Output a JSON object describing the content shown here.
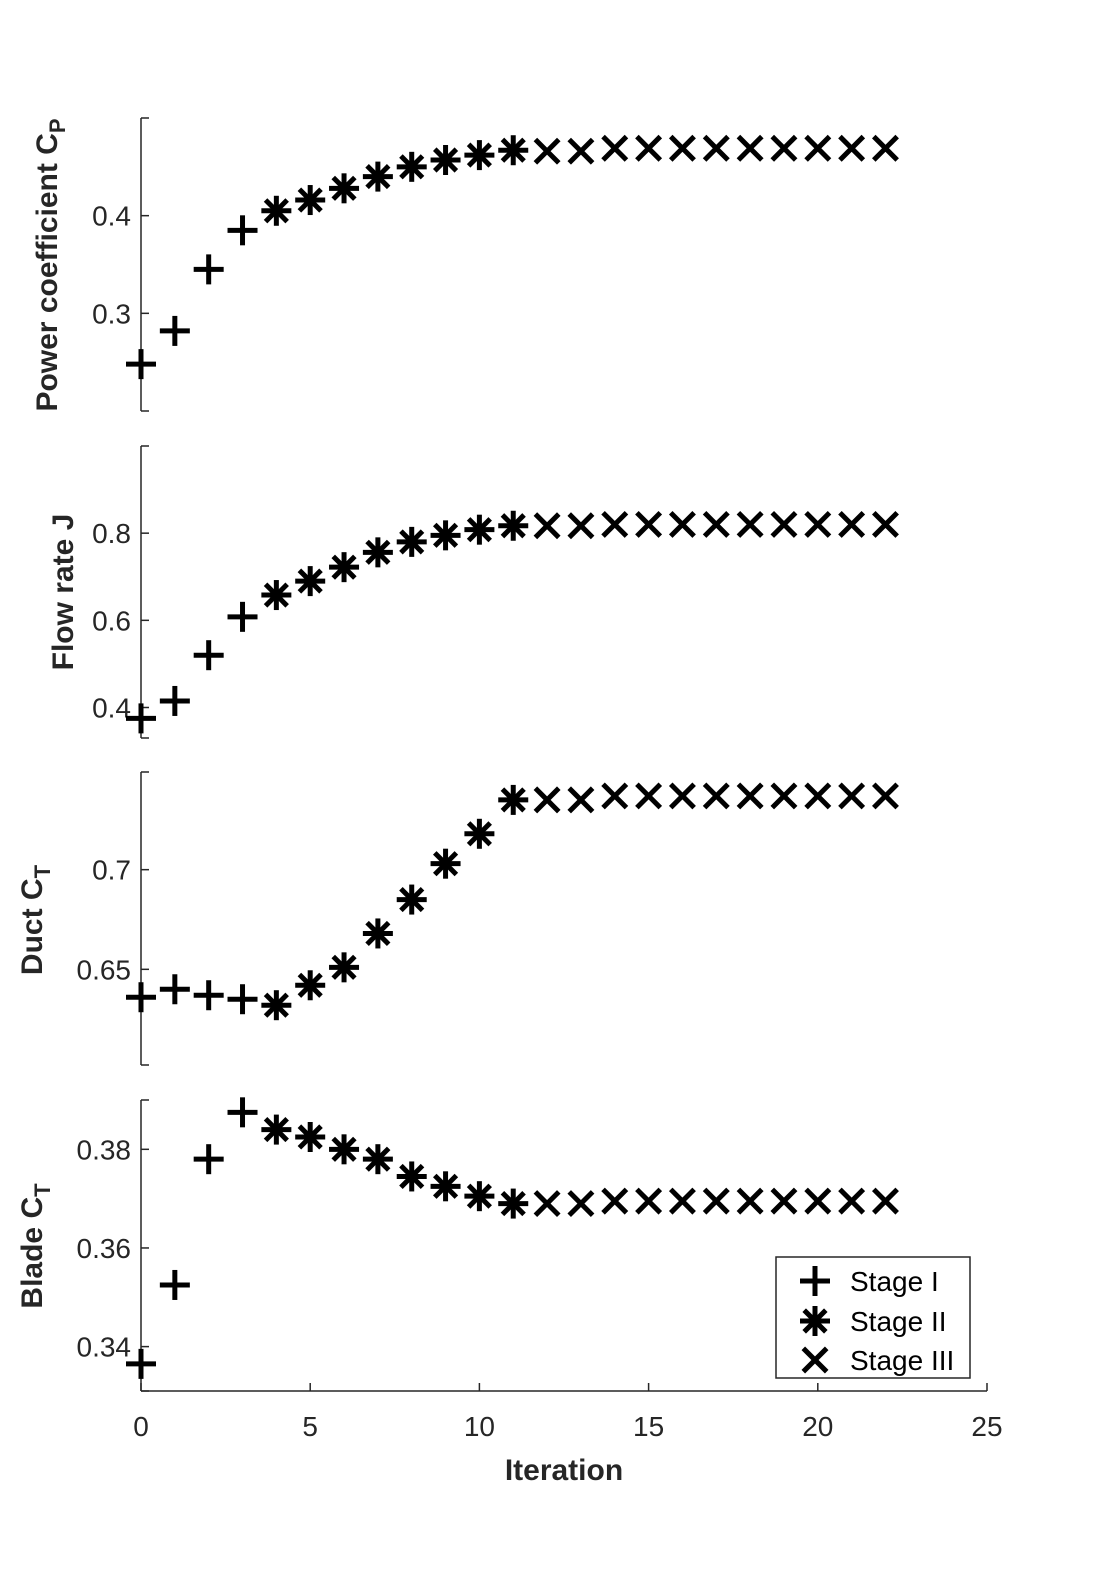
{
  "chart_data": {
    "type": "scatter",
    "legend_placement": "bottom-right of last panel",
    "grid": false,
    "shared_x": {
      "label": "Iteration",
      "lim": [
        0,
        25
      ],
      "ticks": [
        0,
        5,
        10,
        15,
        20,
        25
      ],
      "tick_labels": [
        "0",
        "5",
        "10",
        "15",
        "20",
        "25"
      ]
    },
    "stage_by_iteration": [
      "I",
      "I",
      "I",
      "I",
      "II",
      "II",
      "II",
      "II",
      "II",
      "II",
      "II",
      "II",
      "III",
      "III",
      "III",
      "III",
      "III",
      "III",
      "III",
      "III",
      "III",
      "III",
      "III"
    ],
    "legend": [
      {
        "marker": "plus",
        "label": "Stage I"
      },
      {
        "marker": "asterisk",
        "label": "Stage II"
      },
      {
        "marker": "cross",
        "label": "Stage III"
      }
    ],
    "panels": [
      {
        "ylabel": "Power coefficient C",
        "ylabel_sub": "P",
        "ylim": [
          0.2,
          0.5
        ],
        "yticks": [
          0.3,
          0.4
        ],
        "ytick_labels": [
          "0.3",
          "0.4"
        ],
        "x": [
          0,
          1,
          2,
          3,
          4,
          5,
          6,
          7,
          8,
          9,
          10,
          11,
          12,
          13,
          14,
          15,
          16,
          17,
          18,
          19,
          20,
          21,
          22
        ],
        "y": [
          0.248,
          0.282,
          0.345,
          0.385,
          0.405,
          0.416,
          0.428,
          0.44,
          0.45,
          0.457,
          0.462,
          0.467,
          0.466,
          0.466,
          0.469,
          0.469,
          0.469,
          0.469,
          0.469,
          0.469,
          0.469,
          0.469,
          0.469
        ]
      },
      {
        "ylabel": "Flow rate J",
        "ylabel_sub": "",
        "ylim": [
          0.33,
          1.0
        ],
        "yticks": [
          0.4,
          0.6,
          0.8
        ],
        "ytick_labels": [
          "0.4",
          "0.6",
          "0.8"
        ],
        "x": [
          0,
          1,
          2,
          3,
          4,
          5,
          6,
          7,
          8,
          9,
          10,
          11,
          12,
          13,
          14,
          15,
          16,
          17,
          18,
          19,
          20,
          21,
          22
        ],
        "y": [
          0.375,
          0.415,
          0.52,
          0.608,
          0.658,
          0.69,
          0.722,
          0.756,
          0.78,
          0.795,
          0.808,
          0.817,
          0.817,
          0.817,
          0.82,
          0.82,
          0.82,
          0.82,
          0.82,
          0.82,
          0.82,
          0.82,
          0.82
        ]
      },
      {
        "ylabel": "Duct C",
        "ylabel_sub": "T",
        "ylim": [
          0.602,
          0.749
        ],
        "yticks": [
          0.65,
          0.7
        ],
        "ytick_labels": [
          "0.65",
          "0.7"
        ],
        "x": [
          0,
          1,
          2,
          3,
          4,
          5,
          6,
          7,
          8,
          9,
          10,
          11,
          12,
          13,
          14,
          15,
          16,
          17,
          18,
          19,
          20,
          21,
          22
        ],
        "y": [
          0.636,
          0.64,
          0.637,
          0.635,
          0.632,
          0.642,
          0.651,
          0.668,
          0.685,
          0.703,
          0.718,
          0.735,
          0.735,
          0.735,
          0.737,
          0.737,
          0.737,
          0.737,
          0.737,
          0.737,
          0.737,
          0.737,
          0.737
        ]
      },
      {
        "ylabel": "Blade C",
        "ylabel_sub": "T",
        "ylim": [
          0.331,
          0.39
        ],
        "yticks": [
          0.34,
          0.36,
          0.38
        ],
        "ytick_labels": [
          "0.34",
          "0.36",
          "0.38"
        ],
        "x": [
          0,
          1,
          2,
          3,
          4,
          5,
          6,
          7,
          8,
          9,
          10,
          11,
          12,
          13,
          14,
          15,
          16,
          17,
          18,
          19,
          20,
          21,
          22
        ],
        "y": [
          0.3365,
          0.3525,
          0.378,
          0.3875,
          0.384,
          0.3825,
          0.38,
          0.378,
          0.3745,
          0.3725,
          0.3705,
          0.369,
          0.369,
          0.369,
          0.3695,
          0.3695,
          0.3695,
          0.3695,
          0.3695,
          0.3695,
          0.3695,
          0.3695,
          0.3695
        ]
      }
    ]
  }
}
